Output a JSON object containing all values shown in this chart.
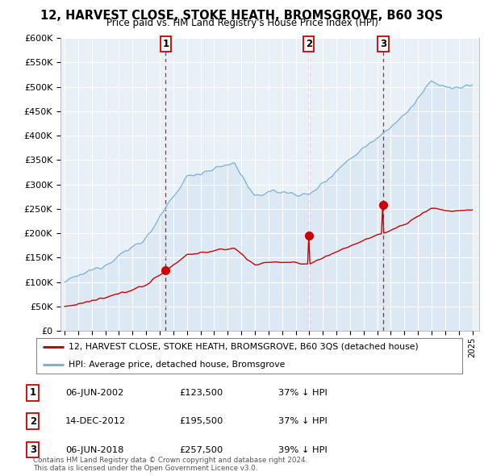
{
  "title": "12, HARVEST CLOSE, STOKE HEATH, BROMSGROVE, B60 3QS",
  "subtitle": "Price paid vs. HM Land Registry's House Price Index (HPI)",
  "ylim": [
    0,
    600000
  ],
  "yticks": [
    0,
    50000,
    100000,
    150000,
    200000,
    250000,
    300000,
    350000,
    400000,
    450000,
    500000,
    550000,
    600000
  ],
  "ytick_labels": [
    "£0",
    "£50K",
    "£100K",
    "£150K",
    "£200K",
    "£250K",
    "£300K",
    "£350K",
    "£400K",
    "£450K",
    "£500K",
    "£550K",
    "£600K"
  ],
  "red_line_color": "#cc0000",
  "blue_line_color": "#7bafd4",
  "blue_fill_color": "#dce9f5",
  "transaction_prices": [
    123500,
    195500,
    257500
  ],
  "transaction_labels": [
    "1",
    "2",
    "3"
  ],
  "transaction_years": [
    2002.44,
    2012.96,
    2018.44
  ],
  "legend_red": "12, HARVEST CLOSE, STOKE HEATH, BROMSGROVE, B60 3QS (detached house)",
  "legend_blue": "HPI: Average price, detached house, Bromsgrove",
  "table_rows": [
    [
      "1",
      "06-JUN-2002",
      "£123,500",
      "37% ↓ HPI"
    ],
    [
      "2",
      "14-DEC-2012",
      "£195,500",
      "37% ↓ HPI"
    ],
    [
      "3",
      "06-JUN-2018",
      "£257,500",
      "39% ↓ HPI"
    ]
  ],
  "footer": "Contains HM Land Registry data © Crown copyright and database right 2024.\nThis data is licensed under the Open Government Licence v3.0.",
  "background_color": "#ffffff",
  "chart_bg_color": "#e8f0f8",
  "grid_color": "#ffffff",
  "vline_color": "#cc0000"
}
